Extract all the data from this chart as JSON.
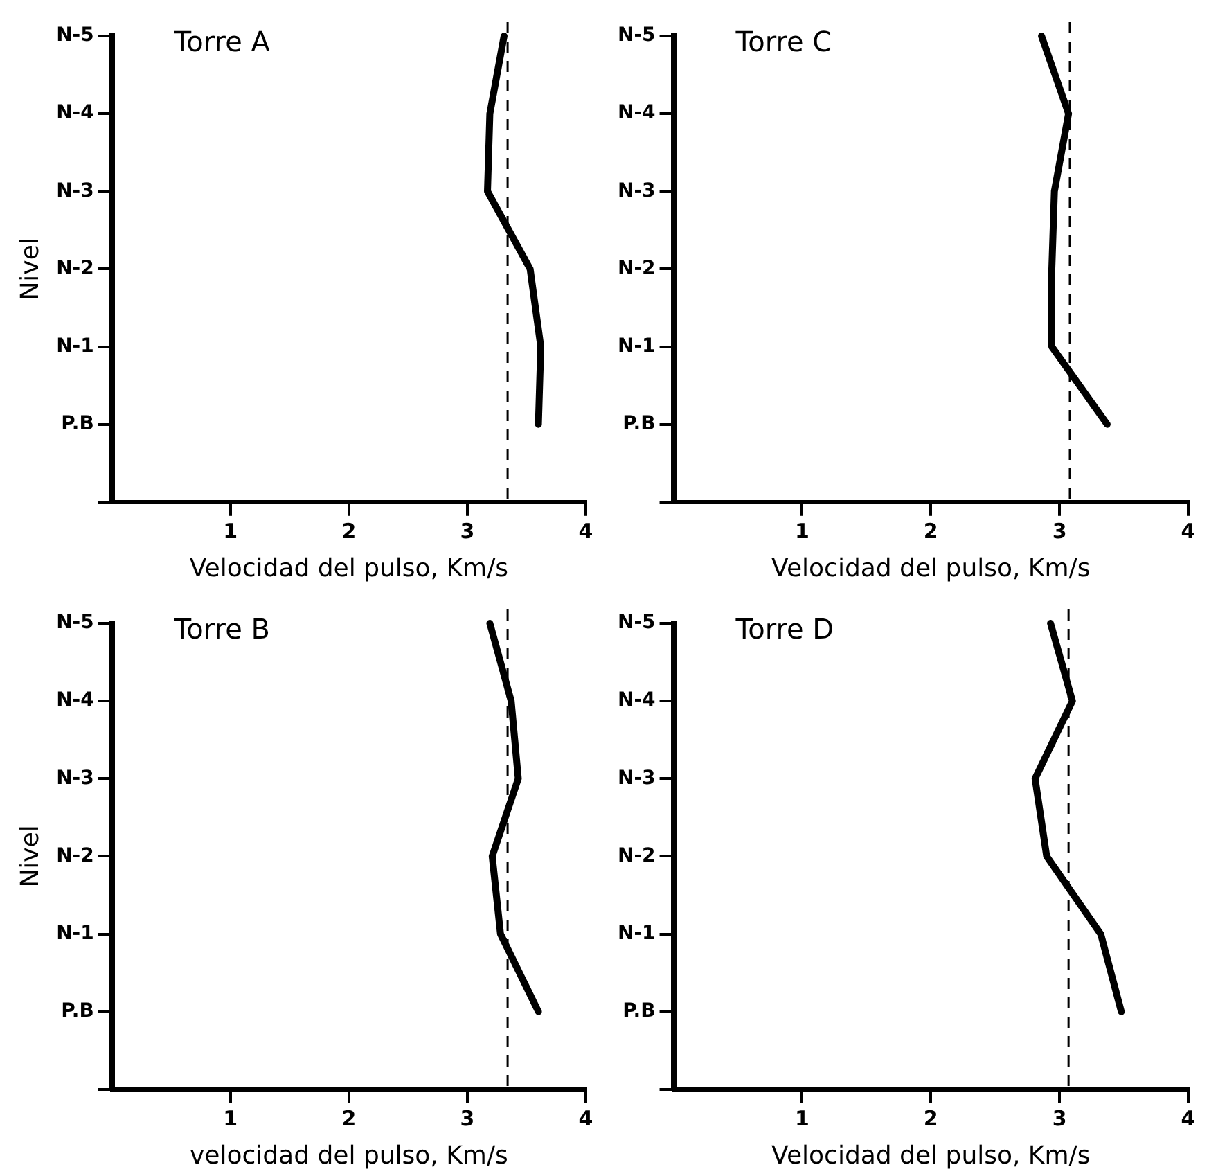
{
  "chart_data": [
    {
      "type": "line",
      "orientation": "horizontal",
      "title": "Torre A",
      "categories": [
        "N-5",
        "N-4",
        "N-3",
        "N-2",
        "N-1",
        "P.B",
        null
      ],
      "values": [
        3.31,
        3.19,
        3.17,
        3.53,
        3.62,
        3.6,
        null
      ],
      "color": "#000000",
      "line_style": "solid",
      "xlim": [
        0,
        4
      ],
      "xticks": [
        1,
        2,
        3,
        4
      ],
      "xlabel": "Velocidad del pulso, Km/s",
      "ylabel": "Nivel",
      "ref_lines": [
        {
          "axis": "x",
          "value": 3.34,
          "line_style": "dashed",
          "color": "#000000"
        }
      ]
    },
    {
      "type": "line",
      "orientation": "horizontal",
      "title": "Torre C",
      "categories": [
        "N-5",
        "N-4",
        "N-3",
        "N-2",
        "N-1",
        "P.B",
        null
      ],
      "values": [
        2.86,
        3.07,
        2.96,
        2.94,
        2.94,
        3.37,
        null
      ],
      "color": "#000000",
      "line_style": "solid",
      "xlim": [
        0,
        4
      ],
      "xticks": [
        1,
        2,
        3,
        4
      ],
      "xlabel": "Velocidad del pulso, Km/s",
      "ref_lines": [
        {
          "axis": "x",
          "value": 3.08,
          "line_style": "dashed",
          "color": "#000000"
        }
      ]
    },
    {
      "type": "line",
      "orientation": "horizontal",
      "title": "Torre B",
      "categories": [
        "N-5",
        "N-4",
        "N-3",
        "N-2",
        "N-1",
        "P.B",
        null
      ],
      "values": [
        3.19,
        3.37,
        3.43,
        3.21,
        3.28,
        3.6,
        null
      ],
      "color": "#000000",
      "line_style": "solid",
      "xlim": [
        0,
        4
      ],
      "xticks": [
        1,
        2,
        3,
        4
      ],
      "xlabel": "velocidad del pulso, Km/s",
      "ylabel": "Nivel",
      "ref_lines": [
        {
          "axis": "x",
          "value": 3.34,
          "line_style": "dashed",
          "color": "#000000"
        }
      ]
    },
    {
      "type": "line",
      "orientation": "horizontal",
      "title": "Torre D",
      "categories": [
        "N-5",
        "N-4",
        "N-3",
        "N-2",
        "N-1",
        "P.B",
        null
      ],
      "values": [
        2.93,
        3.1,
        2.81,
        2.9,
        3.32,
        3.48,
        null
      ],
      "color": "#000000",
      "line_style": "solid",
      "xlim": [
        0,
        4
      ],
      "xticks": [
        1,
        2,
        3,
        4
      ],
      "xlabel": "Velocidad del pulso, Km/s",
      "ref_lines": [
        {
          "axis": "x",
          "value": 3.07,
          "line_style": "dashed",
          "color": "#000000"
        }
      ]
    }
  ]
}
